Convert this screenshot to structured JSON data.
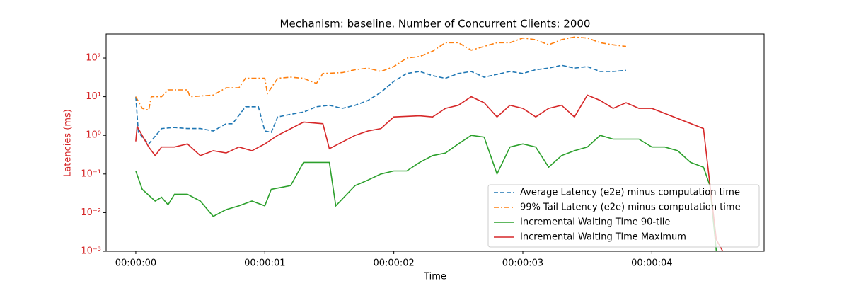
{
  "chart_data": {
    "type": "line",
    "title": "Mechanism: baseline. Number of Concurrent Clients: 2000",
    "xlabel": "Time",
    "ylabel": "Latencies (ms)",
    "ylabel_color": "#d62728",
    "log_y": true,
    "legend": "lower right",
    "xlim": [
      -0.23,
      4.87
    ],
    "xticks": [
      {
        "value": 0,
        "label": "00:00:00"
      },
      {
        "value": 1,
        "label": "00:00:01"
      },
      {
        "value": 2,
        "label": "00:00:02"
      },
      {
        "value": 3,
        "label": "00:00:03"
      },
      {
        "value": 4,
        "label": "00:00:04"
      }
    ],
    "ylim": [
      0.001,
      420
    ],
    "yticks": [
      {
        "value": 0.001,
        "label": "10⁻³"
      },
      {
        "value": 0.01,
        "label": "10⁻²"
      },
      {
        "value": 0.1,
        "label": "10⁻¹"
      },
      {
        "value": 1,
        "label": "10⁰"
      },
      {
        "value": 10,
        "label": "10¹"
      },
      {
        "value": 100,
        "label": "10²"
      }
    ],
    "series": [
      {
        "name": "Average Latency (e2e) minus computation time",
        "color": "#1f77b4",
        "dash": "dashed",
        "x": [
          0,
          0.02,
          0.05,
          0.1,
          0.2,
          0.3,
          0.4,
          0.5,
          0.6,
          0.7,
          0.75,
          0.85,
          0.95,
          1.0,
          1.05,
          1.1,
          1.2,
          1.3,
          1.4,
          1.5,
          1.6,
          1.7,
          1.8,
          1.9,
          2.0,
          2.1,
          2.2,
          2.3,
          2.4,
          2.5,
          2.6,
          2.7,
          2.8,
          2.9,
          3.0,
          3.1,
          3.2,
          3.3,
          3.4,
          3.5,
          3.6,
          3.7,
          3.8
        ],
        "values": [
          10,
          1.2,
          0.9,
          0.6,
          1.5,
          1.6,
          1.5,
          1.5,
          1.3,
          2,
          2,
          5.5,
          5.5,
          1.3,
          1.2,
          3,
          3.5,
          4,
          5.5,
          6,
          5,
          6,
          8,
          13,
          25,
          40,
          45,
          35,
          30,
          40,
          45,
          32,
          38,
          45,
          40,
          50,
          55,
          65,
          55,
          60,
          45,
          45,
          48
        ]
      },
      {
        "name": "99% Tail Latency (e2e) minus computation time",
        "color": "#ff7f0e",
        "dash": "dashdot",
        "x": [
          0,
          0.05,
          0.1,
          0.12,
          0.2,
          0.25,
          0.4,
          0.42,
          0.6,
          0.7,
          0.8,
          0.85,
          1.0,
          1.02,
          1.1,
          1.2,
          1.3,
          1.4,
          1.45,
          1.6,
          1.7,
          1.8,
          1.9,
          2.0,
          2.1,
          2.2,
          2.3,
          2.4,
          2.5,
          2.6,
          2.7,
          2.8,
          2.9,
          3.0,
          3.1,
          3.2,
          3.3,
          3.4,
          3.5,
          3.6,
          3.7,
          3.8
        ],
        "values": [
          10,
          5,
          4.5,
          10,
          10,
          15,
          15,
          10,
          11,
          17,
          17,
          30,
          30,
          12,
          30,
          32,
          30,
          22,
          40,
          42,
          50,
          55,
          45,
          60,
          100,
          110,
          150,
          250,
          250,
          160,
          200,
          250,
          250,
          330,
          300,
          220,
          300,
          350,
          330,
          250,
          220,
          200
        ]
      },
      {
        "name": "Incremental Waiting Time 90-tile",
        "color": "#2ca02c",
        "dash": "solid",
        "x": [
          0,
          0.05,
          0.15,
          0.2,
          0.25,
          0.3,
          0.4,
          0.5,
          0.6,
          0.7,
          0.8,
          0.9,
          1.0,
          1.05,
          1.2,
          1.3,
          1.5,
          1.55,
          1.7,
          1.8,
          1.9,
          2.0,
          2.1,
          2.2,
          2.3,
          2.4,
          2.5,
          2.6,
          2.7,
          2.8,
          2.9,
          3.0,
          3.1,
          3.2,
          3.3,
          3.4,
          3.5,
          3.6,
          3.7,
          3.8,
          3.9,
          4.0,
          4.1,
          4.2,
          4.3,
          4.4,
          4.45,
          4.5
        ],
        "values": [
          0.12,
          0.04,
          0.02,
          0.025,
          0.016,
          0.03,
          0.03,
          0.02,
          0.008,
          0.012,
          0.015,
          0.02,
          0.015,
          0.04,
          0.05,
          0.2,
          0.2,
          0.015,
          0.05,
          0.07,
          0.1,
          0.12,
          0.12,
          0.2,
          0.3,
          0.35,
          0.6,
          1.0,
          0.9,
          0.1,
          0.5,
          0.6,
          0.5,
          0.15,
          0.3,
          0.4,
          0.5,
          1.0,
          0.8,
          0.8,
          0.8,
          0.5,
          0.5,
          0.4,
          0.2,
          0.15,
          0.05,
          0.001
        ]
      },
      {
        "name": "Incremental Waiting Time Maximum",
        "color": "#d62728",
        "dash": "solid",
        "x": [
          0,
          0.01,
          0.1,
          0.15,
          0.2,
          0.3,
          0.4,
          0.5,
          0.6,
          0.7,
          0.8,
          0.9,
          1.0,
          1.1,
          1.3,
          1.45,
          1.5,
          1.7,
          1.8,
          1.9,
          2.0,
          2.2,
          2.3,
          2.4,
          2.5,
          2.6,
          2.7,
          2.8,
          2.9,
          3.0,
          3.1,
          3.2,
          3.3,
          3.4,
          3.5,
          3.6,
          3.7,
          3.8,
          3.9,
          4.0,
          4.4,
          4.5,
          4.55
        ],
        "values": [
          0.7,
          1.7,
          0.5,
          0.3,
          0.5,
          0.5,
          0.6,
          0.3,
          0.4,
          0.35,
          0.5,
          0.4,
          0.6,
          1.0,
          2.2,
          2,
          0.45,
          1.0,
          1.3,
          1.5,
          3,
          3.2,
          3,
          5,
          6,
          10,
          7,
          3,
          6,
          5,
          3,
          5,
          6,
          3,
          11,
          8,
          5,
          7,
          5,
          5,
          1.5,
          0.002,
          0.001
        ]
      }
    ]
  }
}
